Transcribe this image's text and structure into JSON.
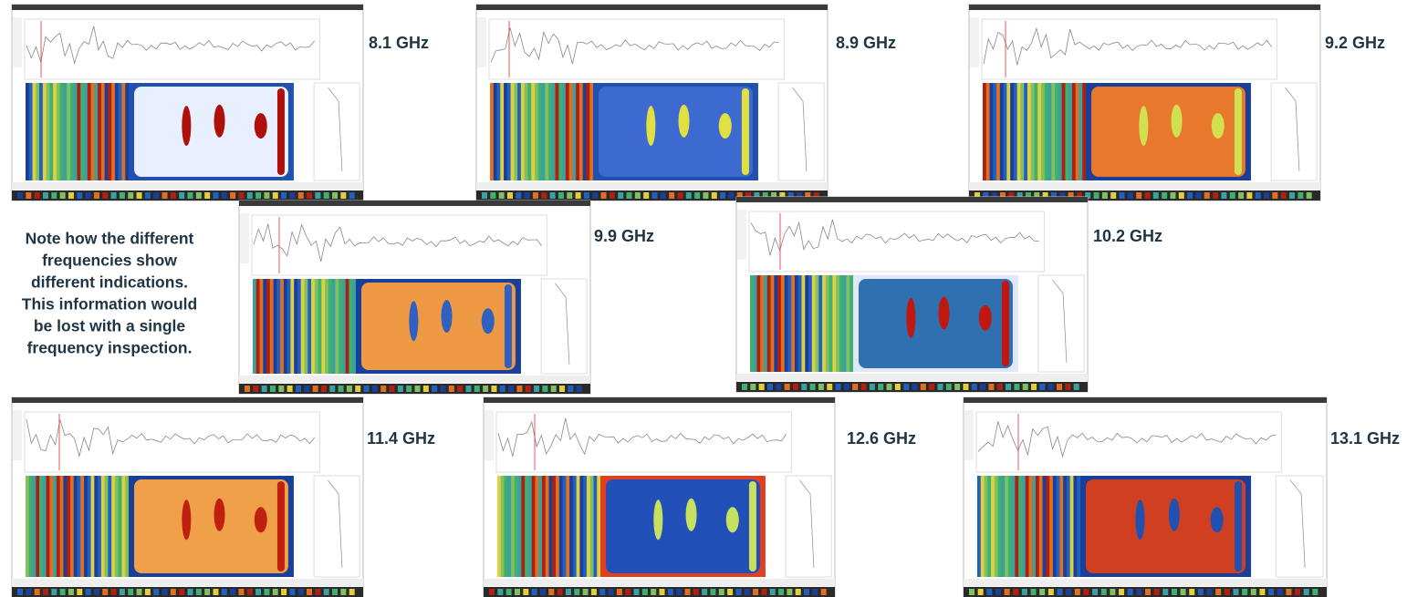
{
  "note": [
    "Note how the different",
    "frequencies show",
    "different indications.",
    "This information would",
    "be lost with a single",
    "frequency inspection."
  ],
  "panels": [
    {
      "label": "8.1 GHz"
    },
    {
      "label": "8.9 GHz"
    },
    {
      "label": "9.2 GHz"
    },
    {
      "label": "9.9 GHz"
    },
    {
      "label": "10.2 GHz"
    },
    {
      "label": "11.4 GHz"
    },
    {
      "label": "12.6 GHz"
    },
    {
      "label": "13.1 GHz"
    }
  ]
}
